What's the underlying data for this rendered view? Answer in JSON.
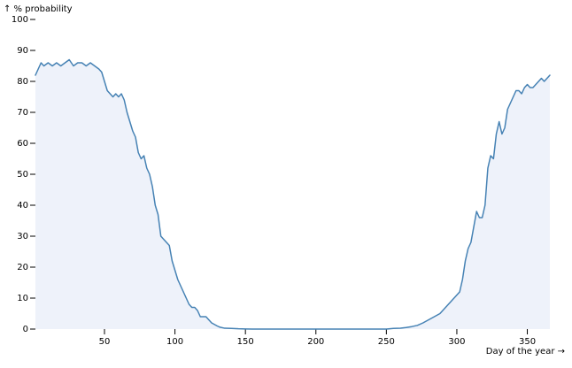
{
  "chart_data": {
    "type": "area",
    "title": "",
    "xlabel": "Day of the year →",
    "ylabel": "↑ % probability",
    "xlim": [
      1,
      366
    ],
    "ylim": [
      0,
      100
    ],
    "x_ticks": [
      50,
      100,
      150,
      200,
      250,
      300,
      350
    ],
    "y_ticks": [
      0,
      10,
      20,
      30,
      40,
      50,
      60,
      70,
      80,
      90,
      100
    ],
    "x_tick_labels": [
      "50",
      "100",
      "150",
      "200",
      "250",
      "300",
      "350"
    ],
    "y_tick_labels": [
      "0",
      "10",
      "20",
      "30",
      "40",
      "50",
      "60",
      "70",
      "80",
      "90",
      "100"
    ],
    "grid": false,
    "line_color": "#4682b4",
    "fill_color": "#eef2fa",
    "series": [
      {
        "x": [
          1,
          3,
          5,
          7,
          10,
          13,
          16,
          19,
          22,
          25,
          28,
          31,
          34,
          37,
          40,
          43,
          46,
          48,
          50,
          52,
          54,
          56,
          58,
          60,
          62,
          64,
          66,
          68,
          70,
          72,
          74,
          76,
          78,
          80,
          82,
          84,
          86,
          88,
          90,
          92,
          94,
          96,
          98,
          100,
          102,
          104,
          106,
          108,
          110,
          112,
          114,
          116,
          118,
          120,
          122,
          124,
          126,
          128,
          130,
          132,
          135,
          140,
          145,
          150,
          155,
          160,
          170,
          180,
          190,
          200,
          210,
          220,
          230,
          240,
          250,
          255,
          260,
          264,
          268,
          272,
          276,
          280,
          284,
          288,
          292,
          294,
          296,
          298,
          300,
          302,
          304,
          306,
          308,
          310,
          312,
          314,
          316,
          318,
          320,
          322,
          324,
          326,
          328,
          330,
          332,
          334,
          336,
          338,
          340,
          342,
          344,
          346,
          348,
          350,
          352,
          354,
          356,
          358,
          360,
          362,
          364,
          366
        ],
        "values": [
          82,
          84,
          86,
          85,
          86,
          85,
          86,
          85,
          86,
          87,
          85,
          86,
          86,
          85,
          86,
          85,
          84,
          83,
          80,
          77,
          76,
          75,
          76,
          75,
          76,
          74,
          70,
          67,
          64,
          62,
          57,
          55,
          56,
          52,
          50,
          46,
          40,
          37,
          30,
          29,
          28,
          27,
          22,
          19,
          16,
          14,
          12,
          10,
          8,
          7,
          7,
          6,
          4,
          4,
          4,
          3,
          2,
          1.5,
          1,
          0.6,
          0.3,
          0.2,
          0.1,
          0.05,
          0,
          0,
          0,
          0,
          0,
          0,
          0,
          0,
          0,
          0,
          0,
          0.2,
          0.3,
          0.5,
          0.8,
          1.2,
          2,
          3,
          4,
          5,
          7,
          8,
          9,
          10,
          11,
          12,
          16,
          22,
          26,
          28,
          33,
          38,
          36,
          36,
          40,
          52,
          56,
          55,
          63,
          67,
          63,
          65,
          71,
          73,
          75,
          77,
          77,
          76,
          78,
          79,
          78,
          78,
          79,
          80,
          81,
          80,
          81,
          82
        ]
      }
    ]
  }
}
